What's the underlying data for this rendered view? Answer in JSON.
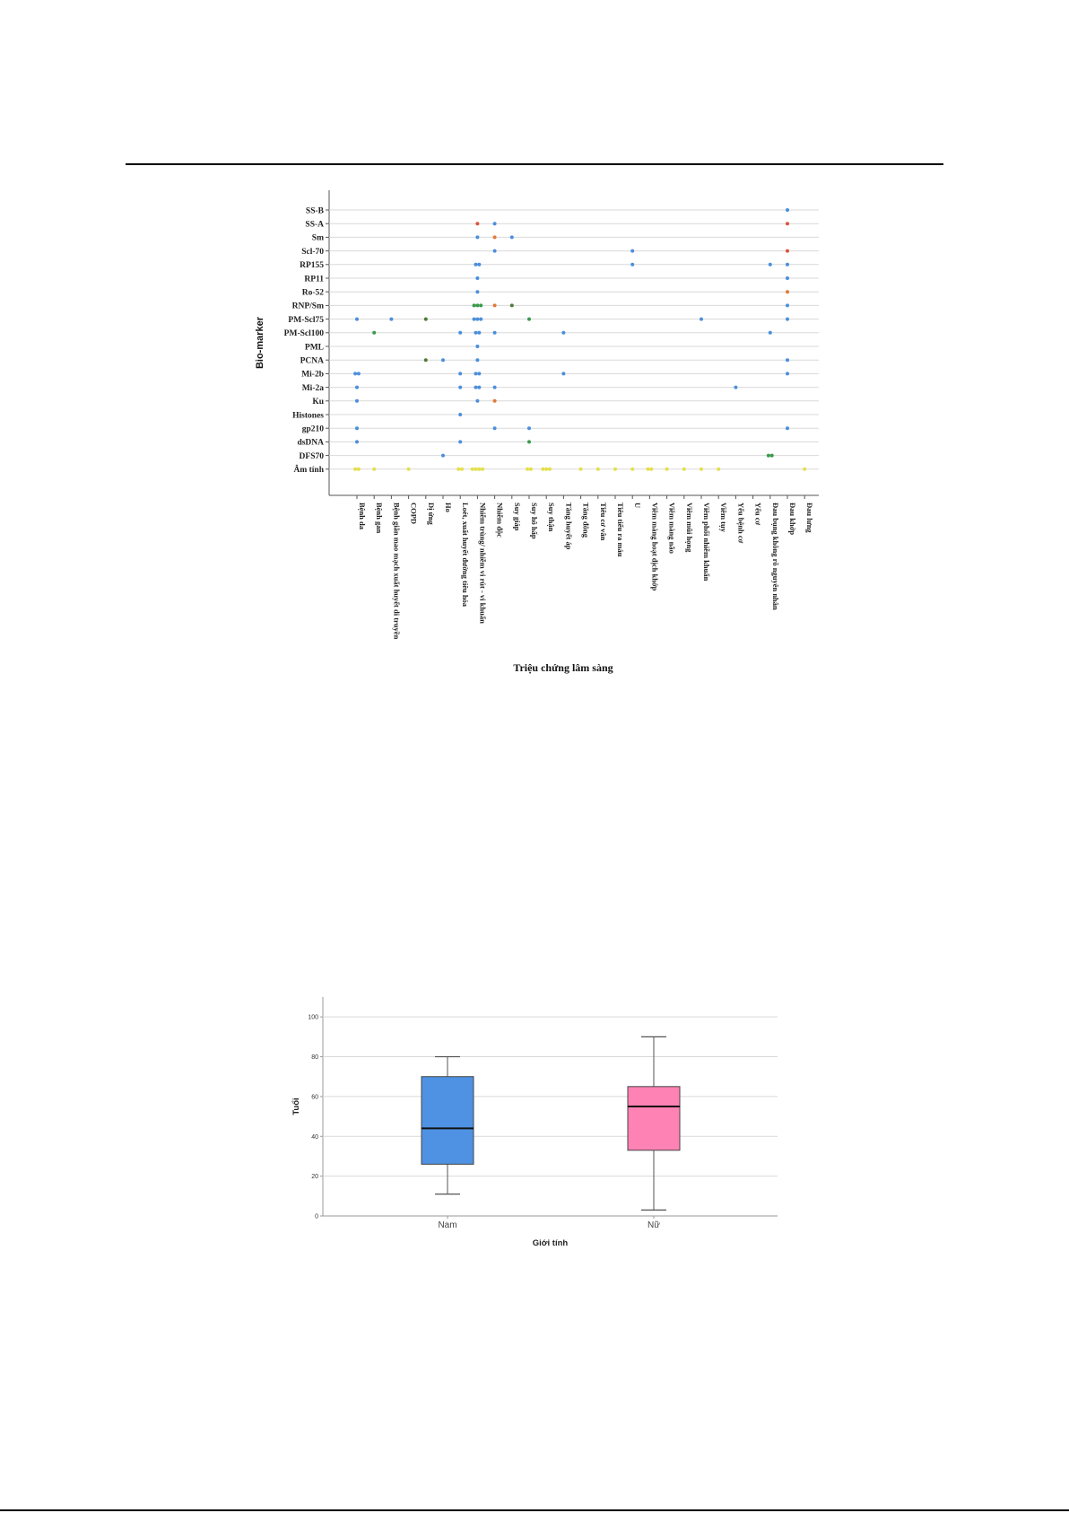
{
  "colors": {
    "default_point": "#4a8fdc",
    "negative_point": "#e3e04a",
    "green_point": "#3a9a4a",
    "orange_point": "#e07a3a",
    "red_point": "#d8553f",
    "darkgreen_point": "#4f7a3a",
    "box_male": "#4f92e3",
    "box_female": "#fe82b4",
    "grid": "#d9d9d9"
  },
  "chart_data": [
    {
      "type": "scatter",
      "title": "",
      "xlabel": "Triệu chứng lâm sàng",
      "ylabel": "Bio-marker",
      "grid": "horizontal",
      "y_categories": [
        "SS-B",
        "SS-A",
        "Sm",
        "Scl-70",
        "RP155",
        "RP11",
        "Ro-52",
        "RNP/Sm",
        "PM-Scl75",
        "PM-Scl100",
        "PML",
        "PCNA",
        "Mi-2b",
        "Mi-2a",
        "Ku",
        "Histones",
        "gp210",
        "dsDNA",
        "DFS70",
        "Âm tính"
      ],
      "x_categories": [
        "Bệnh da",
        "Bệnh gan",
        "Bệnh giãn mao mạch xuất huyết di truyền",
        "COPD",
        "Dị ứng",
        "Ho",
        "Loét, xuất huyết đường tiêu hóa",
        "Nhiễm trùng/ nhiễm vi rút - vi khuẩn",
        "Nhiễm độc",
        "Suy giáp",
        "Suy hô hấp",
        "Suy thận",
        "Tăng huyết áp",
        "Tăng đông",
        "Tiêu cơ vân",
        "Tiêu tiểu ra máu",
        "U",
        "Viêm màng hoạt dịch khớp",
        "Viêm màng não",
        "Viêm mũi họng",
        "Viêm phổi nhiễm khuẩn",
        "Viêm tụy",
        "Yếu bệnh cơ",
        "Yếu cơ",
        "Đau bụng không rõ nguyên nhân",
        "Đau khớp",
        "Đau lưng"
      ],
      "points": [
        {
          "x": "Đau khớp",
          "y": "SS-B"
        },
        {
          "x": "Nhiễm trùng/ nhiễm vi rút - vi khuẩn",
          "y": "SS-A",
          "color": "red"
        },
        {
          "x": "Nhiễm độc",
          "y": "SS-A"
        },
        {
          "x": "Đau khớp",
          "y": "SS-A",
          "color": "red"
        },
        {
          "x": "Nhiễm trùng/ nhiễm vi rút - vi khuẩn",
          "y": "Sm"
        },
        {
          "x": "Nhiễm độc",
          "y": "Sm",
          "color": "orange"
        },
        {
          "x": "Suy giáp",
          "y": "Sm"
        },
        {
          "x": "Nhiễm độc",
          "y": "Scl-70"
        },
        {
          "x": "U",
          "y": "Scl-70"
        },
        {
          "x": "Đau khớp",
          "y": "Scl-70",
          "color": "red"
        },
        {
          "x": "Nhiễm trùng/ nhiễm vi rút - vi khuẩn",
          "y": "RP155",
          "count": 2
        },
        {
          "x": "U",
          "y": "RP155"
        },
        {
          "x": "Đau bụng không rõ nguyên nhân",
          "y": "RP155"
        },
        {
          "x": "Đau khớp",
          "y": "RP155"
        },
        {
          "x": "Nhiễm trùng/ nhiễm vi rút - vi khuẩn",
          "y": "RP11"
        },
        {
          "x": "Đau khớp",
          "y": "RP11"
        },
        {
          "x": "Nhiễm trùng/ nhiễm vi rút - vi khuẩn",
          "y": "Ro-52"
        },
        {
          "x": "Đau khớp",
          "y": "Ro-52",
          "color": "orange"
        },
        {
          "x": "Nhiễm trùng/ nhiễm vi rút - vi khuẩn",
          "y": "RNP/Sm",
          "color": "green",
          "count": 3
        },
        {
          "x": "Nhiễm độc",
          "y": "RNP/Sm",
          "color": "orange"
        },
        {
          "x": "Suy giáp",
          "y": "RNP/Sm",
          "color": "darkgreen"
        },
        {
          "x": "Đau khớp",
          "y": "RNP/Sm"
        },
        {
          "x": "Bệnh da",
          "y": "PM-Scl75"
        },
        {
          "x": "Bệnh giãn mao mạch xuất huyết di truyền",
          "y": "PM-Scl75"
        },
        {
          "x": "Dị ứng",
          "y": "PM-Scl75",
          "color": "darkgreen"
        },
        {
          "x": "Nhiễm trùng/ nhiễm vi rút - vi khuẩn",
          "y": "PM-Scl75",
          "count": 3
        },
        {
          "x": "Suy hô hấp",
          "y": "PM-Scl75",
          "color": "green"
        },
        {
          "x": "Viêm phổi nhiễm khuẩn",
          "y": "PM-Scl75"
        },
        {
          "x": "Đau khớp",
          "y": "PM-Scl75"
        },
        {
          "x": "Bệnh gan",
          "y": "PM-Scl100",
          "color": "green"
        },
        {
          "x": "Loét, xuất huyết đường tiêu hóa",
          "y": "PM-Scl100"
        },
        {
          "x": "Nhiễm trùng/ nhiễm vi rút - vi khuẩn",
          "y": "PM-Scl100",
          "count": 2
        },
        {
          "x": "Nhiễm độc",
          "y": "PM-Scl100"
        },
        {
          "x": "Tăng huyết áp",
          "y": "PM-Scl100"
        },
        {
          "x": "Đau bụng không rõ nguyên nhân",
          "y": "PM-Scl100"
        },
        {
          "x": "Nhiễm trùng/ nhiễm vi rút - vi khuẩn",
          "y": "PML"
        },
        {
          "x": "Dị ứng",
          "y": "PCNA",
          "color": "darkgreen"
        },
        {
          "x": "Ho",
          "y": "PCNA"
        },
        {
          "x": "Nhiễm trùng/ nhiễm vi rút - vi khuẩn",
          "y": "PCNA"
        },
        {
          "x": "Đau khớp",
          "y": "PCNA"
        },
        {
          "x": "Bệnh da",
          "y": "Mi-2b",
          "count": 2
        },
        {
          "x": "Loét, xuất huyết đường tiêu hóa",
          "y": "Mi-2b"
        },
        {
          "x": "Nhiễm trùng/ nhiễm vi rút - vi khuẩn",
          "y": "Mi-2b",
          "count": 2
        },
        {
          "x": "Tăng huyết áp",
          "y": "Mi-2b"
        },
        {
          "x": "Đau khớp",
          "y": "Mi-2b"
        },
        {
          "x": "Bệnh da",
          "y": "Mi-2a"
        },
        {
          "x": "Loét, xuất huyết đường tiêu hóa",
          "y": "Mi-2a"
        },
        {
          "x": "Nhiễm trùng/ nhiễm vi rút - vi khuẩn",
          "y": "Mi-2a",
          "count": 2
        },
        {
          "x": "Nhiễm độc",
          "y": "Mi-2a"
        },
        {
          "x": "Yếu bệnh cơ",
          "y": "Mi-2a"
        },
        {
          "x": "Bệnh da",
          "y": "Ku"
        },
        {
          "x": "Nhiễm trùng/ nhiễm vi rút - vi khuẩn",
          "y": "Ku"
        },
        {
          "x": "Nhiễm độc",
          "y": "Ku",
          "color": "orange"
        },
        {
          "x": "Loét, xuất huyết đường tiêu hóa",
          "y": "Histones"
        },
        {
          "x": "Bệnh da",
          "y": "gp210"
        },
        {
          "x": "Nhiễm độc",
          "y": "gp210"
        },
        {
          "x": "Suy hô hấp",
          "y": "gp210"
        },
        {
          "x": "Đau khớp",
          "y": "gp210"
        },
        {
          "x": "Bệnh da",
          "y": "dsDNA"
        },
        {
          "x": "Loét, xuất huyết đường tiêu hóa",
          "y": "dsDNA"
        },
        {
          "x": "Suy hô hấp",
          "y": "dsDNA",
          "color": "green"
        },
        {
          "x": "Ho",
          "y": "DFS70"
        },
        {
          "x": "Đau bụng không rõ nguyên nhân",
          "y": "DFS70",
          "color": "green",
          "count": 2
        },
        {
          "x": "Bệnh da",
          "y": "Âm tính",
          "color": "yellow",
          "count": 2
        },
        {
          "x": "Bệnh gan",
          "y": "Âm tính",
          "color": "yellow"
        },
        {
          "x": "COPD",
          "y": "Âm tính",
          "color": "yellow"
        },
        {
          "x": "Loét, xuất huyết đường tiêu hóa",
          "y": "Âm tính",
          "color": "yellow",
          "count": 2
        },
        {
          "x": "Nhiễm trùng/ nhiễm vi rút - vi khuẩn",
          "y": "Âm tính",
          "color": "yellow",
          "count": 4
        },
        {
          "x": "Suy hô hấp",
          "y": "Âm tính",
          "color": "yellow",
          "count": 2
        },
        {
          "x": "Suy thận",
          "y": "Âm tính",
          "color": "yellow",
          "count": 3
        },
        {
          "x": "Tăng đông",
          "y": "Âm tính",
          "color": "yellow"
        },
        {
          "x": "Tiêu cơ vân",
          "y": "Âm tính",
          "color": "yellow"
        },
        {
          "x": "Tiêu tiểu ra máu",
          "y": "Âm tính",
          "color": "yellow"
        },
        {
          "x": "U",
          "y": "Âm tính",
          "color": "yellow"
        },
        {
          "x": "Viêm màng hoạt dịch khớp",
          "y": "Âm tính",
          "color": "yellow",
          "count": 2
        },
        {
          "x": "Viêm màng não",
          "y": "Âm tính",
          "color": "yellow"
        },
        {
          "x": "Viêm mũi họng",
          "y": "Âm tính",
          "color": "yellow"
        },
        {
          "x": "Viêm phổi nhiễm khuẩn",
          "y": "Âm tính",
          "color": "yellow"
        },
        {
          "x": "Viêm tụy",
          "y": "Âm tính",
          "color": "yellow"
        },
        {
          "x": "Đau lưng",
          "y": "Âm tính",
          "color": "yellow"
        }
      ]
    },
    {
      "type": "box",
      "title": "",
      "xlabel": "Giới tính",
      "ylabel": "Tuổi",
      "ylim": [
        0,
        110
      ],
      "yticks": [
        0,
        20,
        40,
        60,
        80,
        100
      ],
      "grid": "horizontal",
      "categories": [
        "Nam",
        "Nữ"
      ],
      "boxes": [
        {
          "category": "Nam",
          "min": 11,
          "q1": 26,
          "median": 44,
          "q3": 70,
          "max": 80,
          "color": "#4f92e3"
        },
        {
          "category": "Nữ",
          "min": 3,
          "q1": 33,
          "median": 55,
          "q3": 65,
          "max": 90,
          "color": "#fe82b4"
        }
      ]
    }
  ]
}
